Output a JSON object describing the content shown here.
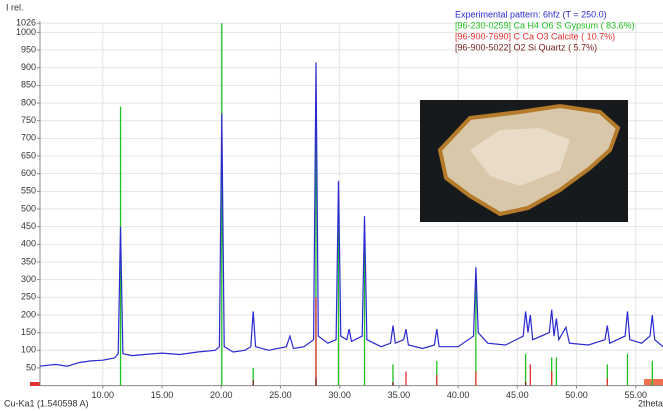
{
  "chart_data": {
    "type": "line",
    "y_label": "I rel.",
    "x_label": "2theta",
    "footer": "Cu-Ka1 (1.540598 A)",
    "xlim": [
      4.7,
      57.3
    ],
    "ylim": [
      0,
      1026
    ],
    "xticks": [
      {
        "value": 10,
        "label": "10.00"
      },
      {
        "value": 15,
        "label": "15.00"
      },
      {
        "value": 20,
        "label": "20.00"
      },
      {
        "value": 25,
        "label": "25.00"
      },
      {
        "value": 30,
        "label": "30.00"
      },
      {
        "value": 35,
        "label": "35.00"
      },
      {
        "value": 40,
        "label": "40.00"
      },
      {
        "value": 45,
        "label": "45.00"
      },
      {
        "value": 50,
        "label": "50.00"
      },
      {
        "value": 55,
        "label": "55.00"
      }
    ],
    "yticks": [
      50,
      100,
      150,
      200,
      250,
      300,
      350,
      400,
      450,
      500,
      550,
      600,
      650,
      700,
      750,
      800,
      850,
      900,
      950,
      1000,
      1026
    ],
    "grid": true,
    "series": [
      {
        "name": "Experimental pattern: 6hfz (T = 250.0)",
        "type": "line",
        "color": "#2a2ad0",
        "x": [
          4.7,
          6,
          7,
          8,
          9,
          10,
          11,
          11.3,
          11.5,
          11.7,
          12.5,
          13.5,
          15,
          16.5,
          18,
          19.5,
          19.85,
          20.05,
          20.25,
          21,
          22,
          22.5,
          22.7,
          22.9,
          24,
          25.5,
          25.8,
          26.1,
          27,
          27.8,
          28,
          28.2,
          29,
          29.7,
          29.9,
          30.1,
          30.6,
          30.8,
          31,
          31.9,
          32.1,
          32.3,
          33.5,
          34.3,
          34.5,
          34.7,
          35.4,
          35.6,
          35.8,
          37,
          38,
          38.2,
          38.4,
          40,
          41.3,
          41.5,
          41.7,
          42.5,
          44,
          45.5,
          45.7,
          45.9,
          46.1,
          46.3,
          47.7,
          47.9,
          48.1,
          48.3,
          48.5,
          49.1,
          49.4,
          51,
          52.4,
          52.6,
          52.8,
          54.1,
          54.3,
          54.5,
          55.5,
          56.2,
          56.4,
          56.6,
          57.3
        ],
        "values": [
          55,
          60,
          55,
          65,
          70,
          72,
          78,
          90,
          450,
          90,
          85,
          88,
          92,
          88,
          95,
          100,
          110,
          770,
          110,
          95,
          100,
          110,
          210,
          110,
          100,
          110,
          140,
          105,
          110,
          130,
          915,
          140,
          120,
          130,
          580,
          140,
          130,
          160,
          125,
          140,
          480,
          130,
          110,
          120,
          170,
          120,
          130,
          160,
          115,
          105,
          115,
          160,
          110,
          110,
          140,
          335,
          150,
          120,
          115,
          140,
          210,
          150,
          200,
          130,
          150,
          215,
          140,
          190,
          130,
          165,
          120,
          115,
          130,
          170,
          120,
          140,
          210,
          130,
          120,
          140,
          200,
          130,
          110
        ]
      },
      {
        "name": "[96-230-0259] Ca H4 O6 S Gypsum ( 83.6%)",
        "type": "stick",
        "color": "#22c022",
        "x": [
          11.5,
          20.05,
          22.7,
          28.0,
          29.9,
          32.1,
          34.5,
          38.2,
          41.5,
          45.7,
          47.9,
          48.3,
          52.6,
          54.3,
          56.4
        ],
        "values": [
          790,
          1026,
          50,
          740,
          450,
          390,
          60,
          70,
          300,
          90,
          80,
          80,
          60,
          90,
          70
        ]
      },
      {
        "name": "[96-900-7690] C Ca O3  Calcite ( 10.7%)",
        "type": "stick",
        "color": "#e83030",
        "x": [
          28.0,
          35.6,
          38.2,
          41.5,
          46.1,
          47.9,
          52.6
        ],
        "values": [
          250,
          40,
          30,
          40,
          60,
          40,
          20
        ]
      },
      {
        "name": "[96-900-5022] O2 Si  Quartz (  5.7%)",
        "type": "stick",
        "color": "#7a1f1f",
        "x": [
          22.7,
          28.0,
          34.5,
          45.7
        ],
        "values": [
          15,
          20,
          10,
          10
        ]
      }
    ]
  }
}
